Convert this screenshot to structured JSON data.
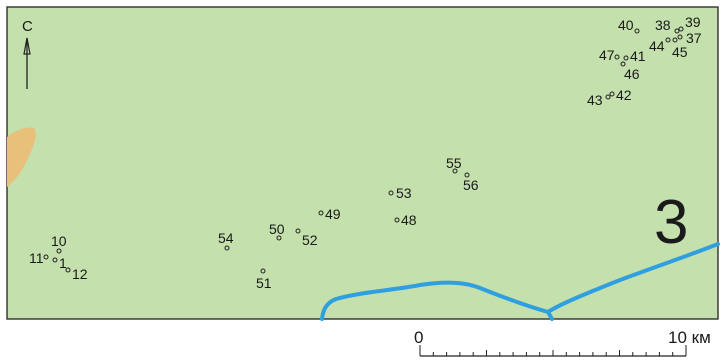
{
  "map": {
    "north_label": "С",
    "zone_label": "3",
    "colors": {
      "land": "#c4e0ad",
      "border": "#222222",
      "sand": "#e8c07a",
      "river": "#2f9fe0",
      "point": "#222222"
    },
    "points": [
      {
        "id": "1",
        "label": "1"
      },
      {
        "id": "10",
        "label": "10"
      },
      {
        "id": "11",
        "label": "11"
      },
      {
        "id": "12",
        "label": "12"
      },
      {
        "id": "54",
        "label": "54"
      },
      {
        "id": "51",
        "label": "51"
      },
      {
        "id": "50",
        "label": "50"
      },
      {
        "id": "52",
        "label": "52"
      },
      {
        "id": "49",
        "label": "49"
      },
      {
        "id": "53",
        "label": "53"
      },
      {
        "id": "48",
        "label": "48"
      },
      {
        "id": "55",
        "label": "55"
      },
      {
        "id": "56",
        "label": "56"
      },
      {
        "id": "40",
        "label": "40"
      },
      {
        "id": "38",
        "label": "38"
      },
      {
        "id": "39",
        "label": "39"
      },
      {
        "id": "37",
        "label": "37"
      },
      {
        "id": "44",
        "label": "44"
      },
      {
        "id": "45",
        "label": "45"
      },
      {
        "id": "47",
        "label": "47"
      },
      {
        "id": "41",
        "label": "41"
      },
      {
        "id": "46",
        "label": "46"
      },
      {
        "id": "43",
        "label": "43"
      },
      {
        "id": "42",
        "label": "42"
      }
    ]
  },
  "scale_bar": {
    "start_label": "0",
    "end_label": "10 км",
    "divisions": 20
  }
}
